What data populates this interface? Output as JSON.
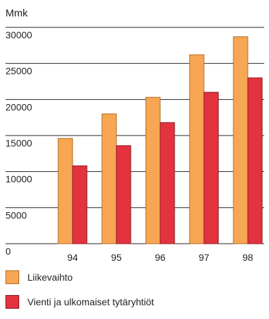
{
  "chart_data": {
    "type": "bar",
    "unit_label": "Mmk",
    "categories": [
      "94",
      "95",
      "96",
      "97",
      "98"
    ],
    "series": [
      {
        "name": "Liikevaihto",
        "color": "#F7A654",
        "values": [
          14600,
          18000,
          20300,
          26200,
          28700
        ]
      },
      {
        "name": "Vienti ja ulkomaiset tytäryhtiöt",
        "color": "#E3333F",
        "values": [
          10800,
          13600,
          16800,
          21000,
          23000
        ]
      }
    ],
    "ylim": [
      0,
      30000
    ],
    "yticks": [
      "0",
      "5000",
      "10000",
      "15000",
      "20000",
      "25000",
      "30000"
    ],
    "grid": true,
    "legend_position": "bottom"
  }
}
